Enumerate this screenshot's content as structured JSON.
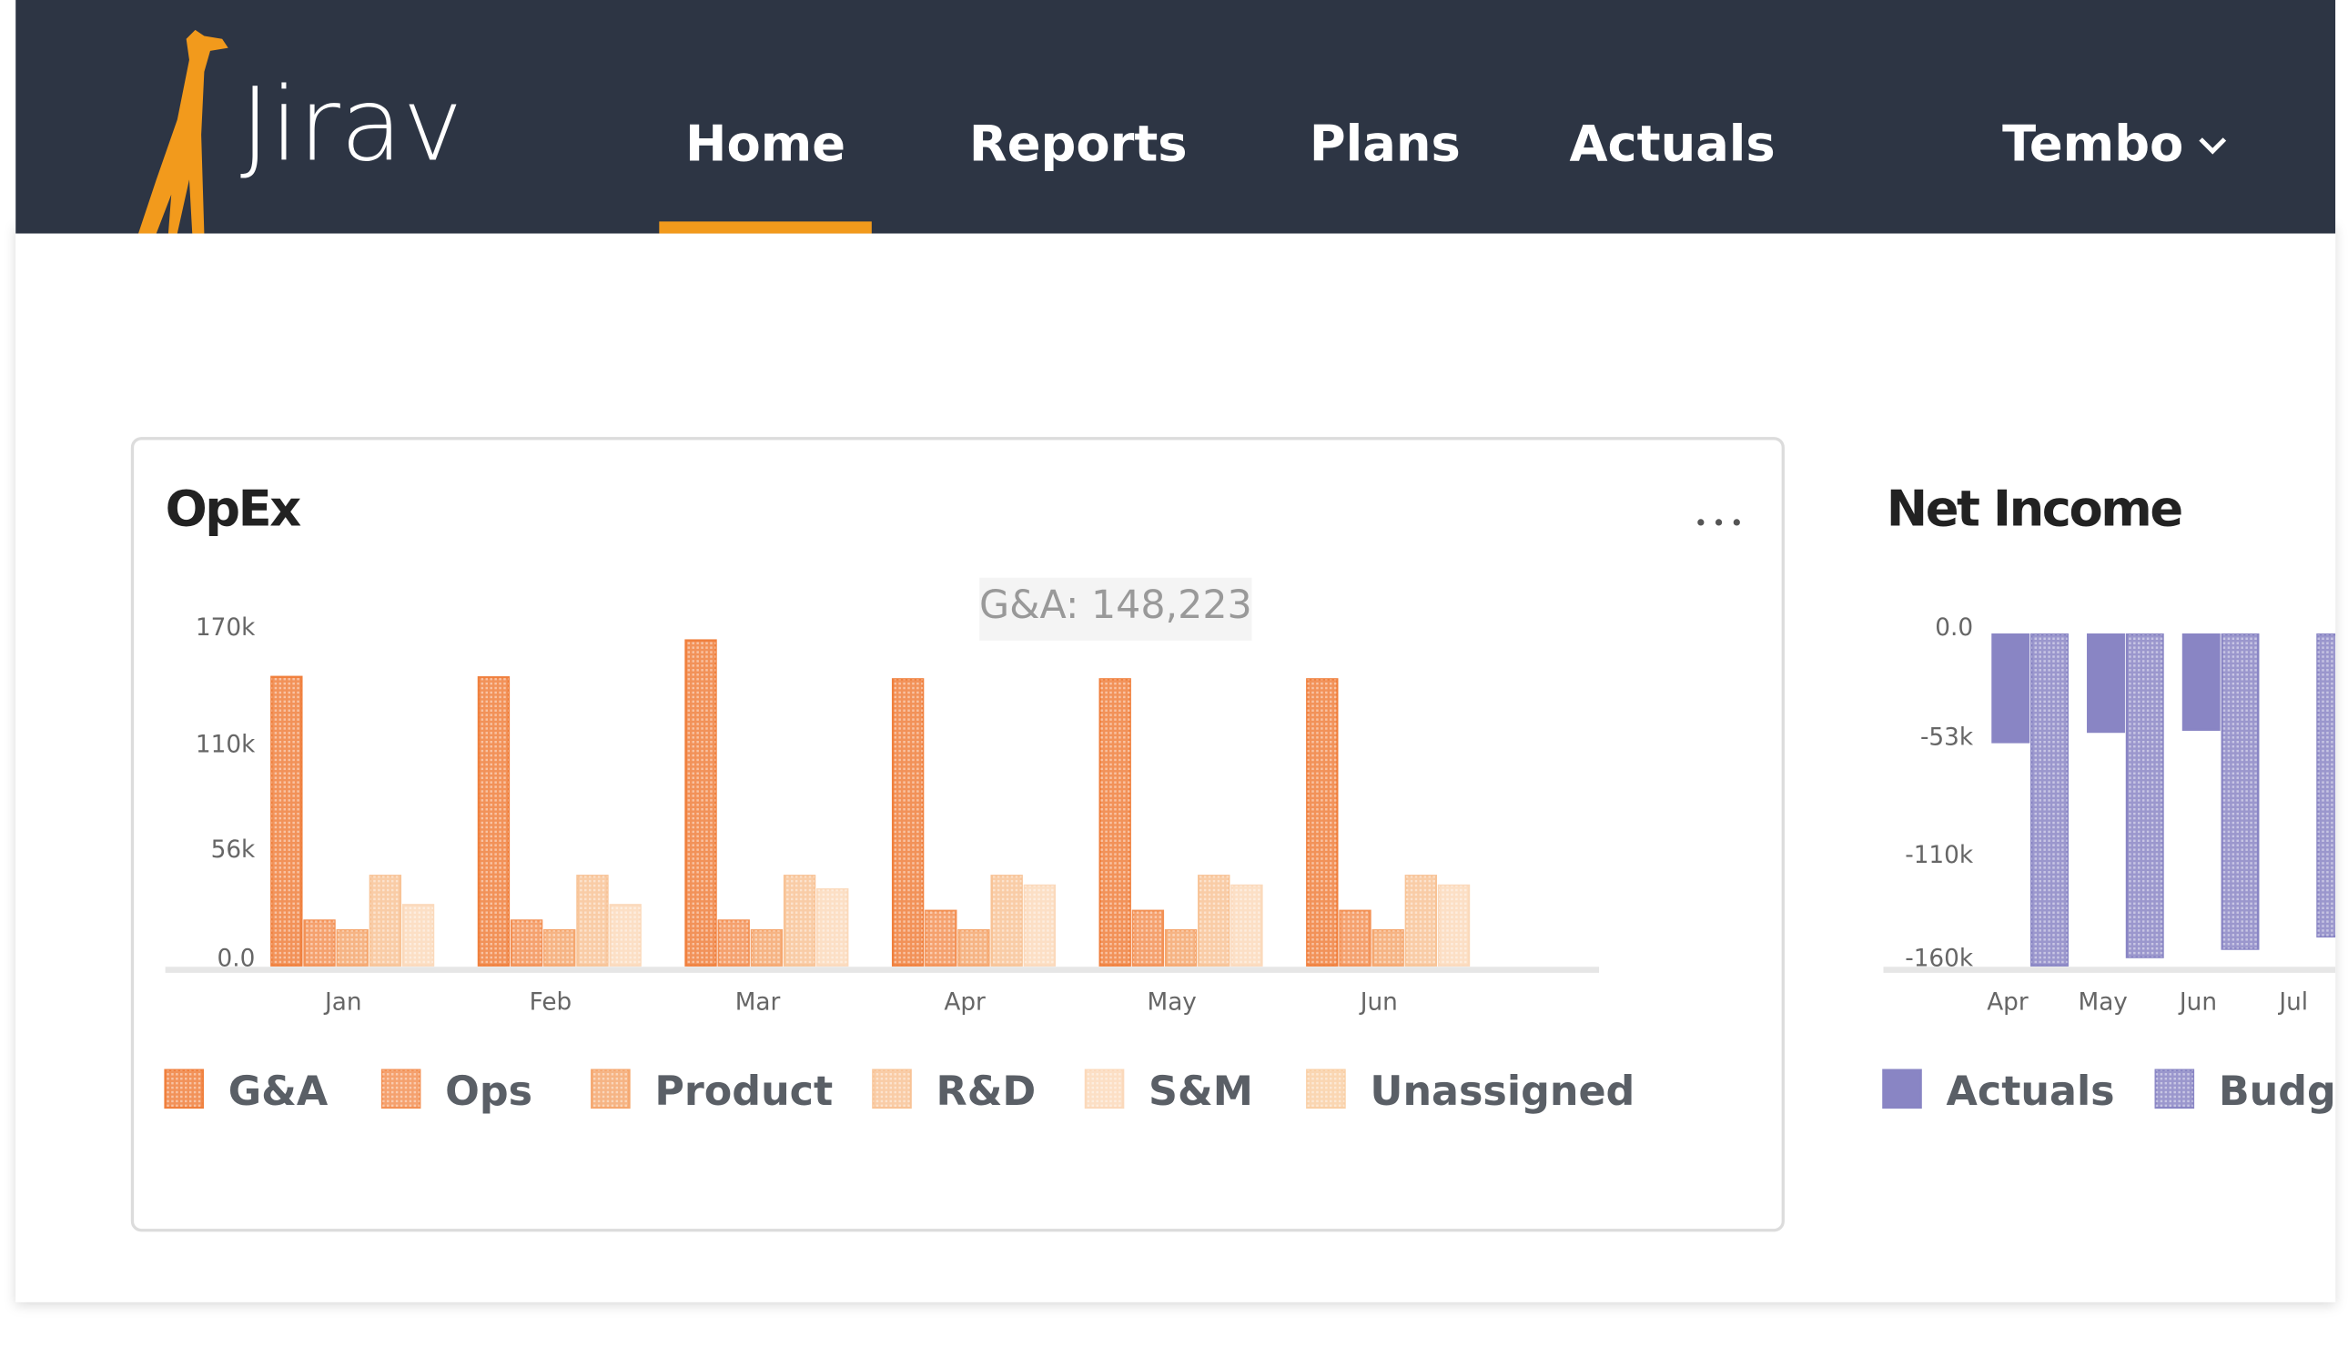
{
  "header": {
    "brand": "Jirav",
    "nav": [
      "Home",
      "Reports",
      "Plans",
      "Actuals"
    ],
    "active": 0,
    "account": "Tembo"
  },
  "chart_data": [
    {
      "type": "bar",
      "title": "OpEx",
      "tooltip": "G&A: 148,223",
      "categories": [
        "Jan",
        "Feb",
        "Mar",
        "Apr",
        "May",
        "Jun"
      ],
      "series": [
        {
          "name": "G&A",
          "color": "#f07f3c",
          "values": [
            148223,
            148000,
            167000,
            147000,
            147000,
            147000
          ]
        },
        {
          "name": "Ops",
          "color": "#f39155",
          "values": [
            23000,
            23000,
            23000,
            28000,
            28000,
            28000
          ]
        },
        {
          "name": "Product",
          "color": "#f5a76f",
          "values": [
            18000,
            18000,
            18000,
            18000,
            18000,
            18000
          ]
        },
        {
          "name": "R&D",
          "color": "#f8c396",
          "values": [
            46000,
            46000,
            46000,
            46000,
            46000,
            46000
          ]
        },
        {
          "name": "S&M",
          "color": "#fbd9bb",
          "values": [
            31000,
            31000,
            39000,
            41000,
            41000,
            41000
          ]
        },
        {
          "name": "Unassigned",
          "color": "#f9cfa5",
          "values": [
            0,
            0,
            0,
            0,
            0,
            0
          ]
        }
      ],
      "ylim": [
        0,
        170000
      ],
      "yticks": [
        {
          "value": 0,
          "label": "0.0"
        },
        {
          "value": 56000,
          "label": "56k"
        },
        {
          "value": 110000,
          "label": "110k"
        },
        {
          "value": 170000,
          "label": "170k"
        }
      ]
    },
    {
      "type": "bar",
      "title": "Net Income",
      "categories": [
        "Apr",
        "May",
        "Jun",
        "Jul"
      ],
      "series": [
        {
          "name": "Actuals",
          "color": "#8985c4",
          "values": [
            -52000,
            -47000,
            -46000,
            null
          ]
        },
        {
          "name": "Budget",
          "color": "#8985c4",
          "values": [
            -160000,
            -156000,
            -152000,
            -146000
          ]
        }
      ],
      "ylim": [
        -160000,
        0
      ],
      "yticks": [
        {
          "value": 0,
          "label": "0.0"
        },
        {
          "value": -53000,
          "label": "-53k"
        },
        {
          "value": -110000,
          "label": "-110k"
        },
        {
          "value": -160000,
          "label": "-160k"
        }
      ]
    }
  ]
}
